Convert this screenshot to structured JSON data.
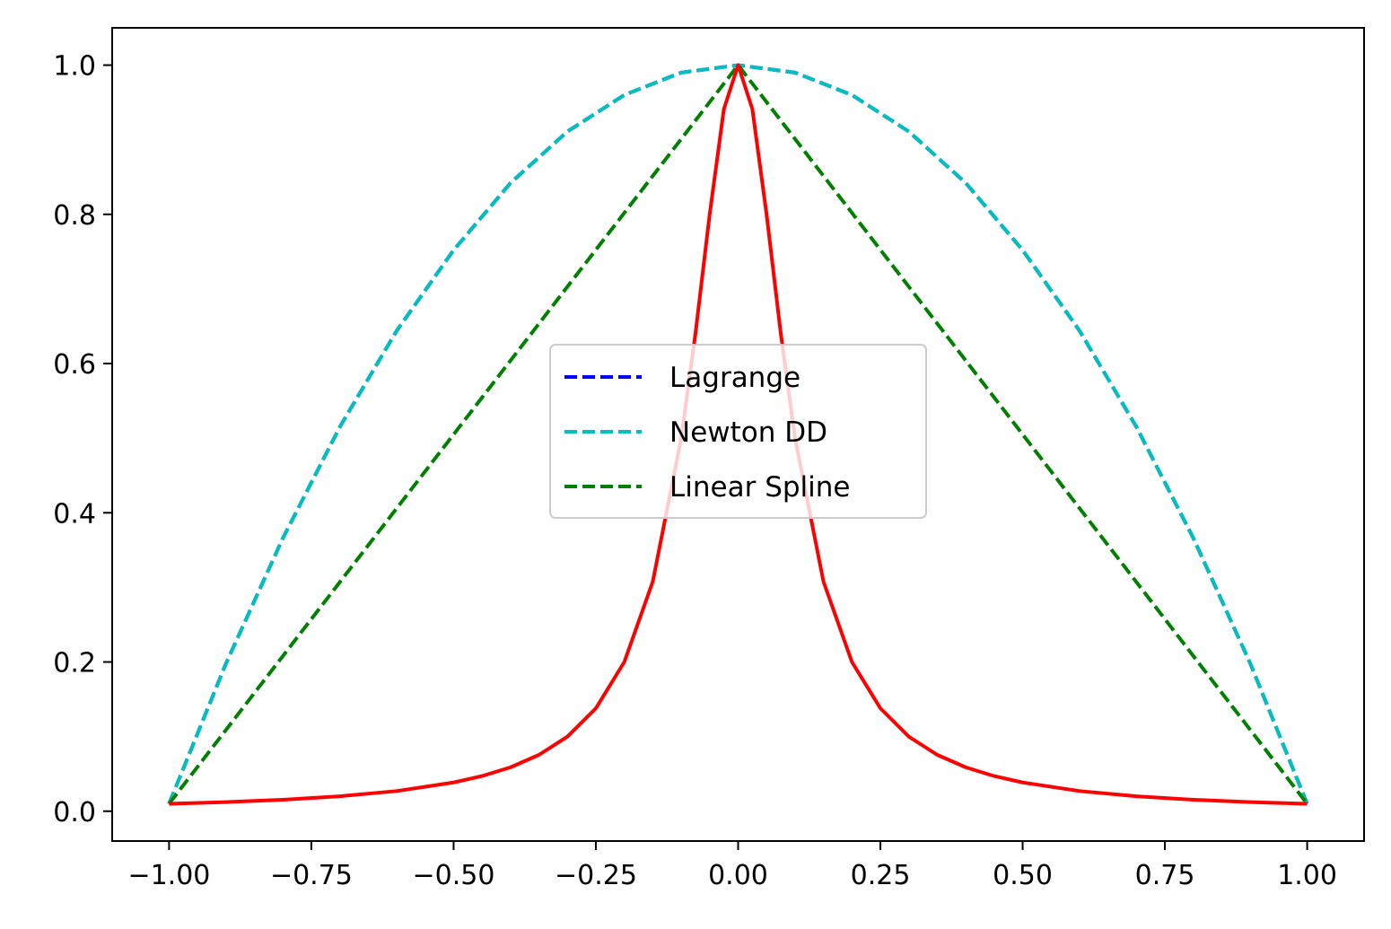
{
  "chart_data": {
    "type": "line",
    "title": "",
    "xlabel": "",
    "ylabel": "",
    "xlim": [
      -1.1,
      1.1
    ],
    "ylim": [
      -0.04,
      1.05
    ],
    "xticks": [
      -1.0,
      -0.75,
      -0.5,
      -0.25,
      0.0,
      0.25,
      0.5,
      0.75,
      1.0
    ],
    "xtick_labels": [
      "−1.00",
      "−0.75",
      "−0.50",
      "−0.25",
      "0.00",
      "0.25",
      "0.50",
      "0.75",
      "1.00"
    ],
    "yticks": [
      0.0,
      0.2,
      0.4,
      0.6,
      0.8,
      1.0
    ],
    "ytick_labels": [
      "0.0",
      "0.2",
      "0.4",
      "0.6",
      "0.8",
      "1.0"
    ],
    "grid": false,
    "legend_position": "center",
    "series": [
      {
        "name": "Lagrange",
        "color": "#0000ff",
        "style": "dashed",
        "x": [
          -1.0,
          -0.9,
          -0.8,
          -0.7,
          -0.6,
          -0.5,
          -0.4,
          -0.3,
          -0.2,
          -0.1,
          0.0,
          0.1,
          0.2,
          0.3,
          0.4,
          0.5,
          0.6,
          0.7,
          0.8,
          0.9,
          1.0
        ],
        "y": [
          0.01,
          0.198,
          0.366,
          0.515,
          0.644,
          0.752,
          0.842,
          0.911,
          0.96,
          0.99,
          1.0,
          0.99,
          0.96,
          0.911,
          0.842,
          0.752,
          0.644,
          0.515,
          0.366,
          0.198,
          0.01
        ]
      },
      {
        "name": "Newton DD",
        "color": "#00bfbf",
        "style": "dashed",
        "x": [
          -1.0,
          -0.9,
          -0.8,
          -0.7,
          -0.6,
          -0.5,
          -0.4,
          -0.3,
          -0.2,
          -0.1,
          0.0,
          0.1,
          0.2,
          0.3,
          0.4,
          0.5,
          0.6,
          0.7,
          0.8,
          0.9,
          1.0
        ],
        "y": [
          0.01,
          0.198,
          0.366,
          0.515,
          0.644,
          0.752,
          0.842,
          0.911,
          0.96,
          0.99,
          1.0,
          0.99,
          0.96,
          0.911,
          0.842,
          0.752,
          0.644,
          0.515,
          0.366,
          0.198,
          0.01
        ]
      },
      {
        "name": "Linear Spline",
        "color": "#008000",
        "style": "dashed",
        "x": [
          -1.0,
          0.0,
          1.0
        ],
        "y": [
          0.01,
          1.0,
          0.01
        ]
      },
      {
        "color": "#ff0000",
        "style": "solid",
        "x": [
          -1.0,
          -0.9,
          -0.8,
          -0.7,
          -0.6,
          -0.5,
          -0.45,
          -0.4,
          -0.35,
          -0.3,
          -0.25,
          -0.2,
          -0.15,
          -0.1,
          -0.075,
          -0.05,
          -0.025,
          0.0,
          0.025,
          0.05,
          0.075,
          0.1,
          0.15,
          0.2,
          0.25,
          0.3,
          0.35,
          0.4,
          0.45,
          0.5,
          0.6,
          0.7,
          0.8,
          0.9,
          1.0
        ],
        "y": [
          0.0099,
          0.0122,
          0.0154,
          0.02,
          0.027,
          0.0385,
          0.0471,
          0.0588,
          0.0755,
          0.0999,
          0.1379,
          0.2,
          0.3077,
          0.5,
          0.64,
          0.8,
          0.9412,
          1.0,
          0.9412,
          0.8,
          0.64,
          0.5,
          0.3077,
          0.2,
          0.1379,
          0.0999,
          0.0755,
          0.0588,
          0.0471,
          0.0385,
          0.027,
          0.02,
          0.0154,
          0.0122,
          0.0099
        ]
      }
    ]
  }
}
